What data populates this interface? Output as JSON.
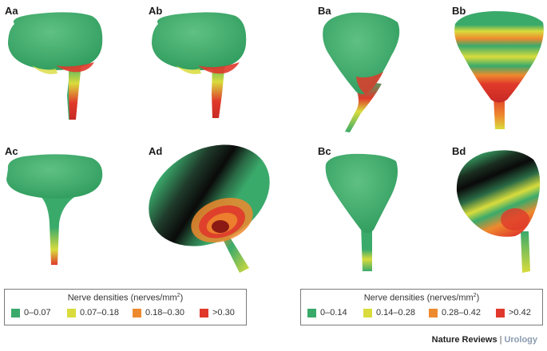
{
  "panels": {
    "aa": "Aa",
    "ab": "Ab",
    "ac": "Ac",
    "ad": "Ad",
    "ba": "Ba",
    "bb": "Bb",
    "bc": "Bc",
    "bd": "Bd"
  },
  "legend_a": {
    "title_prefix": "Nerve densities (nerves/mm",
    "title_sup": "2",
    "title_suffix": ")",
    "items": [
      {
        "label": "0–0.07",
        "color": "#3aaa6b"
      },
      {
        "label": "0.07–0.18",
        "color": "#d9dc3c"
      },
      {
        "label": "0.18–0.30",
        "color": "#ee8a2e"
      },
      {
        "label": ">0.30",
        "color": "#e0392b"
      }
    ]
  },
  "legend_b": {
    "title_prefix": "Nerve densities (nerves/mm",
    "title_sup": "2",
    "title_suffix": ")",
    "items": [
      {
        "label": "0–0.14",
        "color": "#3aaa6b"
      },
      {
        "label": "0.14–0.28",
        "color": "#d9dc3c"
      },
      {
        "label": "0.28–0.42",
        "color": "#ee8a2e"
      },
      {
        "label": ">0.42",
        "color": "#e0392b"
      }
    ]
  },
  "credit": {
    "journal": "Nature Reviews",
    "separator": "|",
    "section": "Urology"
  }
}
